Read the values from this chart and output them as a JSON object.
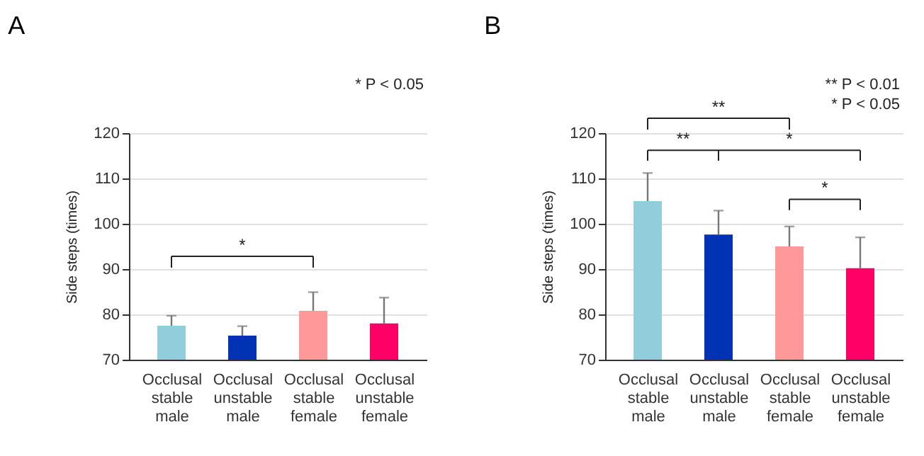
{
  "chart_data": [
    {
      "type": "bar",
      "title": "A",
      "ylabel": "Side steps (times)",
      "categories": [
        "Occlusal stable male",
        "Occlusal unstable male",
        "Occlusal stable female",
        "Occlusal unstable female"
      ],
      "values": [
        77.5,
        75.3,
        80.8,
        78
      ],
      "colors": [
        "#92cddc",
        "#0033b4",
        "#ff9999",
        "#ff0066"
      ],
      "errors": [
        [
          77.5,
          79.7
        ],
        [
          75.3,
          77.4
        ],
        [
          80.8,
          84.9
        ],
        [
          78,
          83.7
        ]
      ],
      "ylim": [
        70,
        120
      ],
      "yticks": [
        70,
        80,
        90,
        100,
        110,
        120
      ],
      "grid": "y",
      "annotations": [
        "* P < 0.05",
        "*"
      ]
    },
    {
      "type": "bar",
      "title": "B",
      "ylabel": "Side steps (times)",
      "categories": [
        "Occlusal stable male",
        "Occlusal unstable male",
        "Occlusal stable female",
        "Occlusal unstable female"
      ],
      "values": [
        105,
        97.6,
        95,
        90.2
      ],
      "colors": [
        "#92cddc",
        "#0033b4",
        "#ff9999",
        "#ff0066"
      ],
      "errors": [
        [
          105,
          111.2
        ],
        [
          97.6,
          102.9
        ],
        [
          95,
          99.4
        ],
        [
          90.2,
          97
        ]
      ],
      "ylim": [
        70,
        120
      ],
      "yticks": [
        70,
        80,
        90,
        100,
        110,
        120
      ],
      "grid": "y",
      "annotations": [
        "** P < 0.01",
        "* P < 0.05",
        "**",
        "**",
        "*",
        "*"
      ]
    }
  ]
}
